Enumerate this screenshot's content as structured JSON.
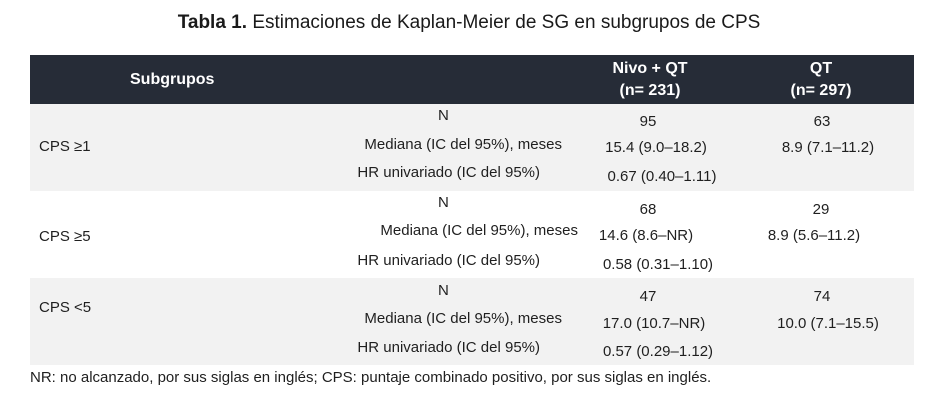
{
  "title": {
    "prefix": "Tabla 1.",
    "text": "Estimaciones de Kaplan-Meier de SG en subgrupos de CPS"
  },
  "header": {
    "subgroups": "Subgrupos",
    "col1_line1": "Nivo + QT",
    "col1_line2": "(n= 231)",
    "col2_line1": "QT",
    "col2_line2": "(n= 297)"
  },
  "rows": [
    {
      "label": "CPS ≥1",
      "n_label": "N",
      "median_label": "Mediana (IC del 95%), meses",
      "hr_label": "HR univariado (IC del 95%)",
      "nivo_n": "95",
      "nivo_median": "15.4 (9.0–18.2)",
      "nivo_hr": "0.67 (0.40–1.11)",
      "qt_n": "63",
      "qt_median": "8.9 (7.1–11.2)"
    },
    {
      "label": "CPS ≥5",
      "n_label": "N",
      "median_label": "Mediana (IC del 95%), meses",
      "hr_label": "HR univariado (IC del 95%)",
      "nivo_n": "68",
      "nivo_median": "14.6 (8.6–NR)",
      "nivo_hr": "0.58 (0.31–1.10)",
      "qt_n": "29",
      "qt_median": "8.9 (5.6–11.2)"
    },
    {
      "label": "CPS <5",
      "n_label": "N",
      "median_label": "Mediana (IC del 95%), meses",
      "hr_label": "HR univariado (IC del 95%)",
      "nivo_n": "47",
      "nivo_median": "17.0 (10.7–NR)",
      "nivo_hr": "0.57 (0.29–1.12)",
      "qt_n": "74",
      "qt_median": "10.0 (7.1–15.5)"
    }
  ],
  "footnote": "NR: no alcanzado, por sus siglas en inglés; CPS: puntaje combinado positivo, por sus siglas en inglés."
}
